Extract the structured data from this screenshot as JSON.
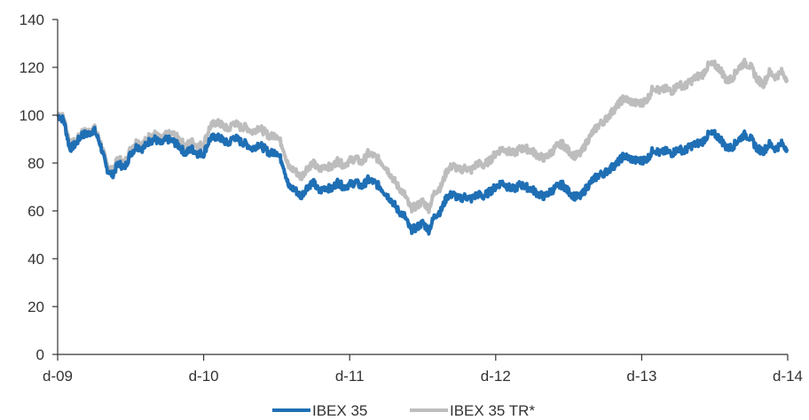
{
  "colors": {
    "ibex35": "#1f6fb5",
    "ibex35tr": "#bdbdbd",
    "axis": "#333333"
  },
  "chart_data": {
    "type": "line",
    "title": "",
    "xlabel": "",
    "ylabel": "",
    "ylim": [
      0,
      140
    ],
    "yticks": [
      0,
      20,
      40,
      60,
      80,
      100,
      120,
      140
    ],
    "xlim": [
      0,
      60
    ],
    "xticks": [
      {
        "x": 0,
        "label": "d-09"
      },
      {
        "x": 12,
        "label": "d-10"
      },
      {
        "x": 24,
        "label": "d-11"
      },
      {
        "x": 36,
        "label": "d-12"
      },
      {
        "x": 48,
        "label": "d-13"
      },
      {
        "x": 60,
        "label": "d-14"
      }
    ],
    "grid": false,
    "legend": "bottom-center",
    "series": [
      {
        "name": "IBEX 35",
        "color": "#1f6fb5",
        "points": [
          [
            0,
            100
          ],
          [
            0.5,
            98
          ],
          [
            1,
            86
          ],
          [
            1.5,
            88
          ],
          [
            2,
            92
          ],
          [
            2.5,
            92
          ],
          [
            3,
            94
          ],
          [
            3.5,
            88
          ],
          [
            4,
            78
          ],
          [
            4.5,
            75
          ],
          [
            5,
            80
          ],
          [
            5.5,
            78
          ],
          [
            6,
            84
          ],
          [
            6.5,
            87
          ],
          [
            7,
            86
          ],
          [
            7.5,
            89
          ],
          [
            8,
            90
          ],
          [
            8.5,
            88
          ],
          [
            9,
            90
          ],
          [
            9.5,
            89
          ],
          [
            10,
            87
          ],
          [
            10.5,
            84
          ],
          [
            11,
            86
          ],
          [
            11.5,
            84
          ],
          [
            12,
            84
          ],
          [
            12.5,
            90
          ],
          [
            13,
            91
          ],
          [
            13.5,
            90
          ],
          [
            14,
            88
          ],
          [
            14.5,
            91
          ],
          [
            15,
            89
          ],
          [
            15.5,
            88
          ],
          [
            16,
            86
          ],
          [
            16.5,
            88
          ],
          [
            17,
            86
          ],
          [
            17.5,
            84
          ],
          [
            18,
            85
          ],
          [
            18.5,
            80
          ],
          [
            19,
            70
          ],
          [
            19.5,
            69
          ],
          [
            20,
            66
          ],
          [
            20.5,
            70
          ],
          [
            21,
            72
          ],
          [
            21.5,
            68
          ],
          [
            22,
            70
          ],
          [
            22.5,
            69
          ],
          [
            23,
            72
          ],
          [
            23.5,
            70
          ],
          [
            24,
            71
          ],
          [
            24.5,
            72
          ],
          [
            25,
            70
          ],
          [
            25.5,
            73
          ],
          [
            26,
            72
          ],
          [
            26.5,
            70
          ],
          [
            27,
            67
          ],
          [
            27.5,
            64
          ],
          [
            28,
            60
          ],
          [
            28.5,
            58
          ],
          [
            29,
            52
          ],
          [
            29.5,
            53
          ],
          [
            30,
            55
          ],
          [
            30.5,
            52
          ],
          [
            31,
            58
          ],
          [
            31.5,
            60
          ],
          [
            32,
            66
          ],
          [
            32.5,
            67
          ],
          [
            33,
            65
          ],
          [
            33.5,
            66
          ],
          [
            34,
            65
          ],
          [
            34.5,
            67
          ],
          [
            35,
            66
          ],
          [
            35.5,
            68
          ],
          [
            36,
            70
          ],
          [
            36.5,
            72
          ],
          [
            37,
            70
          ],
          [
            37.5,
            69
          ],
          [
            38,
            71
          ],
          [
            38.5,
            70
          ],
          [
            39,
            69
          ],
          [
            39.5,
            67
          ],
          [
            40,
            66
          ],
          [
            40.5,
            68
          ],
          [
            41,
            70
          ],
          [
            41.5,
            71
          ],
          [
            42,
            68
          ],
          [
            42.5,
            66
          ],
          [
            43,
            66
          ],
          [
            43.5,
            70
          ],
          [
            44,
            73
          ],
          [
            44.5,
            75
          ],
          [
            45,
            76
          ],
          [
            45.5,
            78
          ],
          [
            46,
            80
          ],
          [
            46.5,
            83
          ],
          [
            47,
            82
          ],
          [
            47.5,
            81
          ],
          [
            48,
            81
          ],
          [
            48.5,
            82
          ],
          [
            49,
            86
          ],
          [
            49.5,
            84
          ],
          [
            50,
            85
          ],
          [
            50.5,
            84
          ],
          [
            51,
            86
          ],
          [
            51.5,
            85
          ],
          [
            52,
            87
          ],
          [
            52.5,
            88
          ],
          [
            53,
            89
          ],
          [
            53.5,
            92
          ],
          [
            54,
            92
          ],
          [
            54.5,
            90
          ],
          [
            55,
            86
          ],
          [
            55.5,
            87
          ],
          [
            56,
            90
          ],
          [
            56.5,
            92
          ],
          [
            57,
            90
          ],
          [
            57.5,
            86
          ],
          [
            58,
            85
          ],
          [
            58.5,
            88
          ],
          [
            59,
            86
          ],
          [
            59.5,
            88
          ],
          [
            60,
            86
          ]
        ]
      },
      {
        "name": "IBEX 35 TR*",
        "color": "#bdbdbd",
        "points": [
          [
            0,
            101
          ],
          [
            0.5,
            99
          ],
          [
            1,
            88
          ],
          [
            1.5,
            89
          ],
          [
            2,
            93
          ],
          [
            2.5,
            93
          ],
          [
            3,
            95
          ],
          [
            3.5,
            89
          ],
          [
            4,
            80
          ],
          [
            4.5,
            77
          ],
          [
            5,
            82
          ],
          [
            5.5,
            80
          ],
          [
            6,
            86
          ],
          [
            6.5,
            89
          ],
          [
            7,
            88
          ],
          [
            7.5,
            91
          ],
          [
            8,
            92
          ],
          [
            8.5,
            90
          ],
          [
            9,
            92
          ],
          [
            9.5,
            92
          ],
          [
            10,
            90
          ],
          [
            10.5,
            87
          ],
          [
            11,
            89
          ],
          [
            11.5,
            87
          ],
          [
            12,
            88
          ],
          [
            12.5,
            95
          ],
          [
            13,
            97
          ],
          [
            13.5,
            96
          ],
          [
            14,
            94
          ],
          [
            14.5,
            97
          ],
          [
            15,
            95
          ],
          [
            15.5,
            95
          ],
          [
            16,
            93
          ],
          [
            16.5,
            95
          ],
          [
            17,
            93
          ],
          [
            17.5,
            91
          ],
          [
            18,
            92
          ],
          [
            18.5,
            87
          ],
          [
            19,
            78
          ],
          [
            19.5,
            77
          ],
          [
            20,
            74
          ],
          [
            20.5,
            78
          ],
          [
            21,
            80
          ],
          [
            21.5,
            77
          ],
          [
            22,
            79
          ],
          [
            22.5,
            78
          ],
          [
            23,
            81
          ],
          [
            23.5,
            79
          ],
          [
            24,
            81
          ],
          [
            24.5,
            82
          ],
          [
            25,
            80
          ],
          [
            25.5,
            84
          ],
          [
            26,
            83
          ],
          [
            26.5,
            81
          ],
          [
            27,
            78
          ],
          [
            27.5,
            74
          ],
          [
            28,
            70
          ],
          [
            28.5,
            67
          ],
          [
            29,
            61
          ],
          [
            29.5,
            62
          ],
          [
            30,
            64
          ],
          [
            30.5,
            61
          ],
          [
            31,
            68
          ],
          [
            31.5,
            70
          ],
          [
            32,
            77
          ],
          [
            32.5,
            79
          ],
          [
            33,
            77
          ],
          [
            33.5,
            78
          ],
          [
            34,
            77
          ],
          [
            34.5,
            80
          ],
          [
            35,
            79
          ],
          [
            35.5,
            81
          ],
          [
            36,
            84
          ],
          [
            36.5,
            86
          ],
          [
            37,
            85
          ],
          [
            37.5,
            84
          ],
          [
            38,
            86
          ],
          [
            38.5,
            86
          ],
          [
            39,
            85
          ],
          [
            39.5,
            83
          ],
          [
            40,
            82
          ],
          [
            40.5,
            84
          ],
          [
            41,
            87
          ],
          [
            41.5,
            88
          ],
          [
            42,
            85
          ],
          [
            42.5,
            83
          ],
          [
            43,
            84
          ],
          [
            43.5,
            89
          ],
          [
            44,
            93
          ],
          [
            44.5,
            96
          ],
          [
            45,
            98
          ],
          [
            45.5,
            101
          ],
          [
            46,
            104
          ],
          [
            46.5,
            107
          ],
          [
            47,
            106
          ],
          [
            47.5,
            105
          ],
          [
            48,
            105
          ],
          [
            48.5,
            107
          ],
          [
            49,
            112
          ],
          [
            49.5,
            110
          ],
          [
            50,
            111
          ],
          [
            50.5,
            110
          ],
          [
            51,
            113
          ],
          [
            51.5,
            112
          ],
          [
            52,
            114
          ],
          [
            52.5,
            116
          ],
          [
            53,
            117
          ],
          [
            53.5,
            121
          ],
          [
            54,
            121
          ],
          [
            54.5,
            119
          ],
          [
            55,
            114
          ],
          [
            55.5,
            116
          ],
          [
            56,
            120
          ],
          [
            56.5,
            122
          ],
          [
            57,
            120
          ],
          [
            57.5,
            115
          ],
          [
            58,
            113
          ],
          [
            58.5,
            118
          ],
          [
            59,
            116
          ],
          [
            59.5,
            118
          ],
          [
            60,
            115
          ]
        ]
      }
    ]
  }
}
